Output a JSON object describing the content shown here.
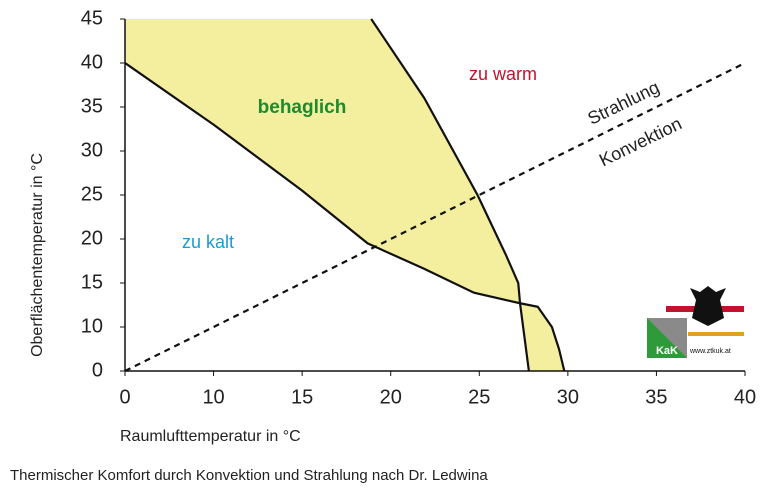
{
  "chart_data": {
    "type": "line",
    "xlabel": "Raumlufttemperatur in °C",
    "ylabel": "Oberflächentemperatur in °C",
    "caption": "Thermischer Komfort durch Konvektion und Strahlung nach Dr. Ledwina",
    "xlim": [
      0,
      40
    ],
    "xticks": [
      0,
      10,
      15,
      20,
      25,
      30,
      35,
      40
    ],
    "ylim": [
      0,
      45
    ],
    "yticks": [
      0,
      10,
      15,
      20,
      25,
      30,
      35,
      40,
      45
    ],
    "areas": [
      {
        "color": "#f4ef9f",
        "x": [
          0,
          0,
          10,
          15,
          18.7,
          21.9,
          24.7,
          27.3,
          27.2,
          26.5,
          24.9,
          21.9,
          18.9
        ],
        "values": [
          45,
          40,
          33,
          25.5,
          19.5,
          16.6,
          13.9,
          12.7,
          15,
          18.2,
          25,
          36,
          45
        ]
      },
      {
        "color": "#f4ef9f",
        "x": [
          27.3,
          28.3,
          29.1,
          29.5,
          29.8,
          27.8
        ],
        "values": [
          12.7,
          12.3,
          10,
          5,
          0,
          0
        ]
      }
    ],
    "series": [
      {
        "color": "#111111",
        "dashed": false,
        "x": [
          0,
          10,
          15,
          18.7,
          21.9,
          24.7,
          27.3,
          28.3,
          29.1,
          29.5,
          29.8
        ],
        "values": [
          40,
          33,
          25.5,
          19.5,
          16.6,
          13.9,
          12.7,
          12.3,
          10,
          5,
          0
        ]
      },
      {
        "color": "#111111",
        "dashed": false,
        "x": [
          18.9,
          21.9,
          24.9,
          26.5,
          27.2,
          27.3,
          27.8
        ],
        "values": [
          45,
          36,
          25,
          18.2,
          15,
          12.7,
          0
        ]
      },
      {
        "color": "#111111",
        "dashed": true,
        "x": [
          0,
          40
        ],
        "values": [
          0,
          40
        ]
      }
    ],
    "annotations": [
      {
        "text": "behaglich",
        "color": "#1e8a2e"
      },
      {
        "text": "zu warm",
        "color": "#c8102e"
      },
      {
        "text": "zu kalt",
        "color": "#1a9bd1"
      },
      {
        "text": "Strahlung",
        "color": "#222222"
      },
      {
        "text": "Konvektion",
        "color": "#222222"
      }
    ],
    "logo": {
      "title": "KaK",
      "url": "www.ztkuk.at"
    }
  }
}
